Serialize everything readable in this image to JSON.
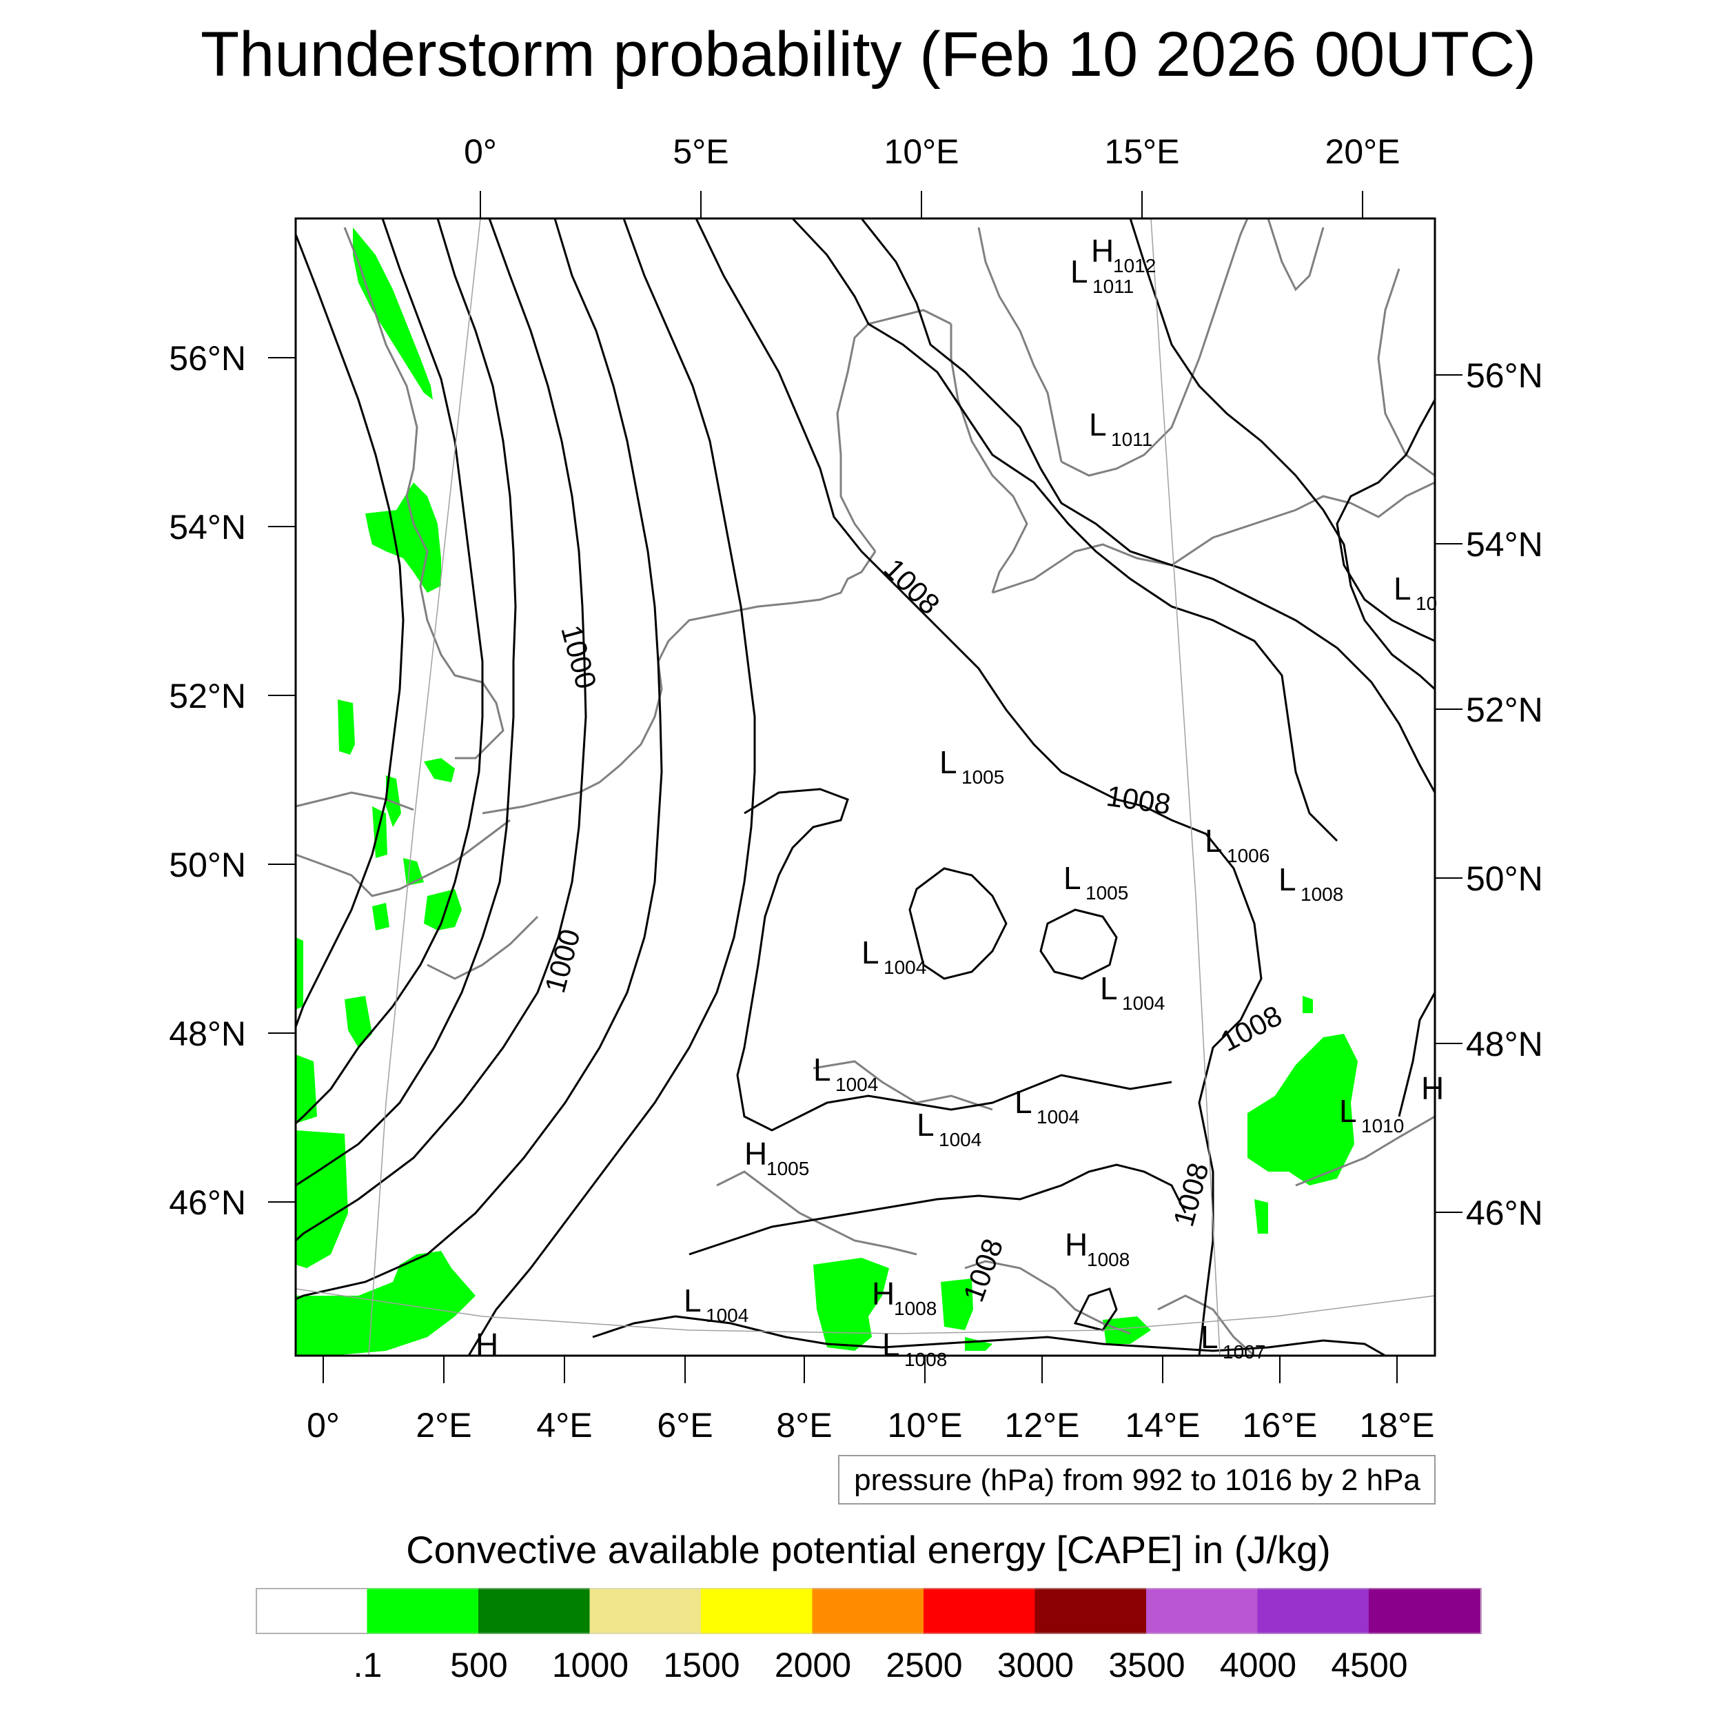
{
  "title": "Thunderstorm probability (Feb 10 2026 00UTC)",
  "top_axis_labels": [
    "0°",
    "5°E",
    "10°E",
    "15°E",
    "20°E"
  ],
  "bottom_axis_labels": [
    "0°",
    "2°E",
    "4°E",
    "6°E",
    "8°E",
    "10°E",
    "12°E",
    "14°E",
    "16°E",
    "18°E"
  ],
  "left_axis_labels": [
    "56°N",
    "54°N",
    "52°N",
    "50°N",
    "48°N",
    "46°N"
  ],
  "right_axis_labels": [
    "56°N",
    "54°N",
    "52°N",
    "50°N",
    "48°N",
    "46°N"
  ],
  "contour_note": "pressure (hPa) from 992 to 1016 by 2 hPa",
  "colorbar": {
    "title": "Convective available potential energy [CAPE] in (J/kg)",
    "tick_labels": [
      ".1",
      "500",
      "1000",
      "1500",
      "2000",
      "2500",
      "3000",
      "3500",
      "4000",
      "4500"
    ],
    "colors": [
      "#ffffff",
      "#00ff00",
      "#008000",
      "#f0e68c",
      "#ffff00",
      "#ff8c00",
      "#ff0000",
      "#8b0000",
      "#ba55d3",
      "#9932cc",
      "#8b008b"
    ]
  },
  "contour_labels": [
    "1000",
    "1000",
    "1008",
    "1008",
    "1008",
    "1008",
    "1008"
  ],
  "pressure_centers": [
    {
      "type": "H",
      "value": "1012"
    },
    {
      "type": "L",
      "value": "1011"
    },
    {
      "type": "L",
      "value": "1011"
    },
    {
      "type": "L",
      "value": "10"
    },
    {
      "type": "L",
      "value": "1005"
    },
    {
      "type": "L",
      "value": "1006"
    },
    {
      "type": "L",
      "value": "1005"
    },
    {
      "type": "L",
      "value": "1008"
    },
    {
      "type": "L",
      "value": "1004"
    },
    {
      "type": "L",
      "value": "1004"
    },
    {
      "type": "L",
      "value": "1004"
    },
    {
      "type": "L",
      "value": "1004"
    },
    {
      "type": "L",
      "value": "1004"
    },
    {
      "type": "L",
      "value": "1010"
    },
    {
      "type": "H",
      "value": ""
    },
    {
      "type": "H",
      "value": "1005"
    },
    {
      "type": "H",
      "value": "1008"
    },
    {
      "type": "H",
      "value": "1008"
    },
    {
      "type": "L",
      "value": "1004"
    },
    {
      "type": "L",
      "value": "1008"
    },
    {
      "type": "L",
      "value": "1007"
    },
    {
      "type": "H",
      "value": ""
    }
  ]
}
